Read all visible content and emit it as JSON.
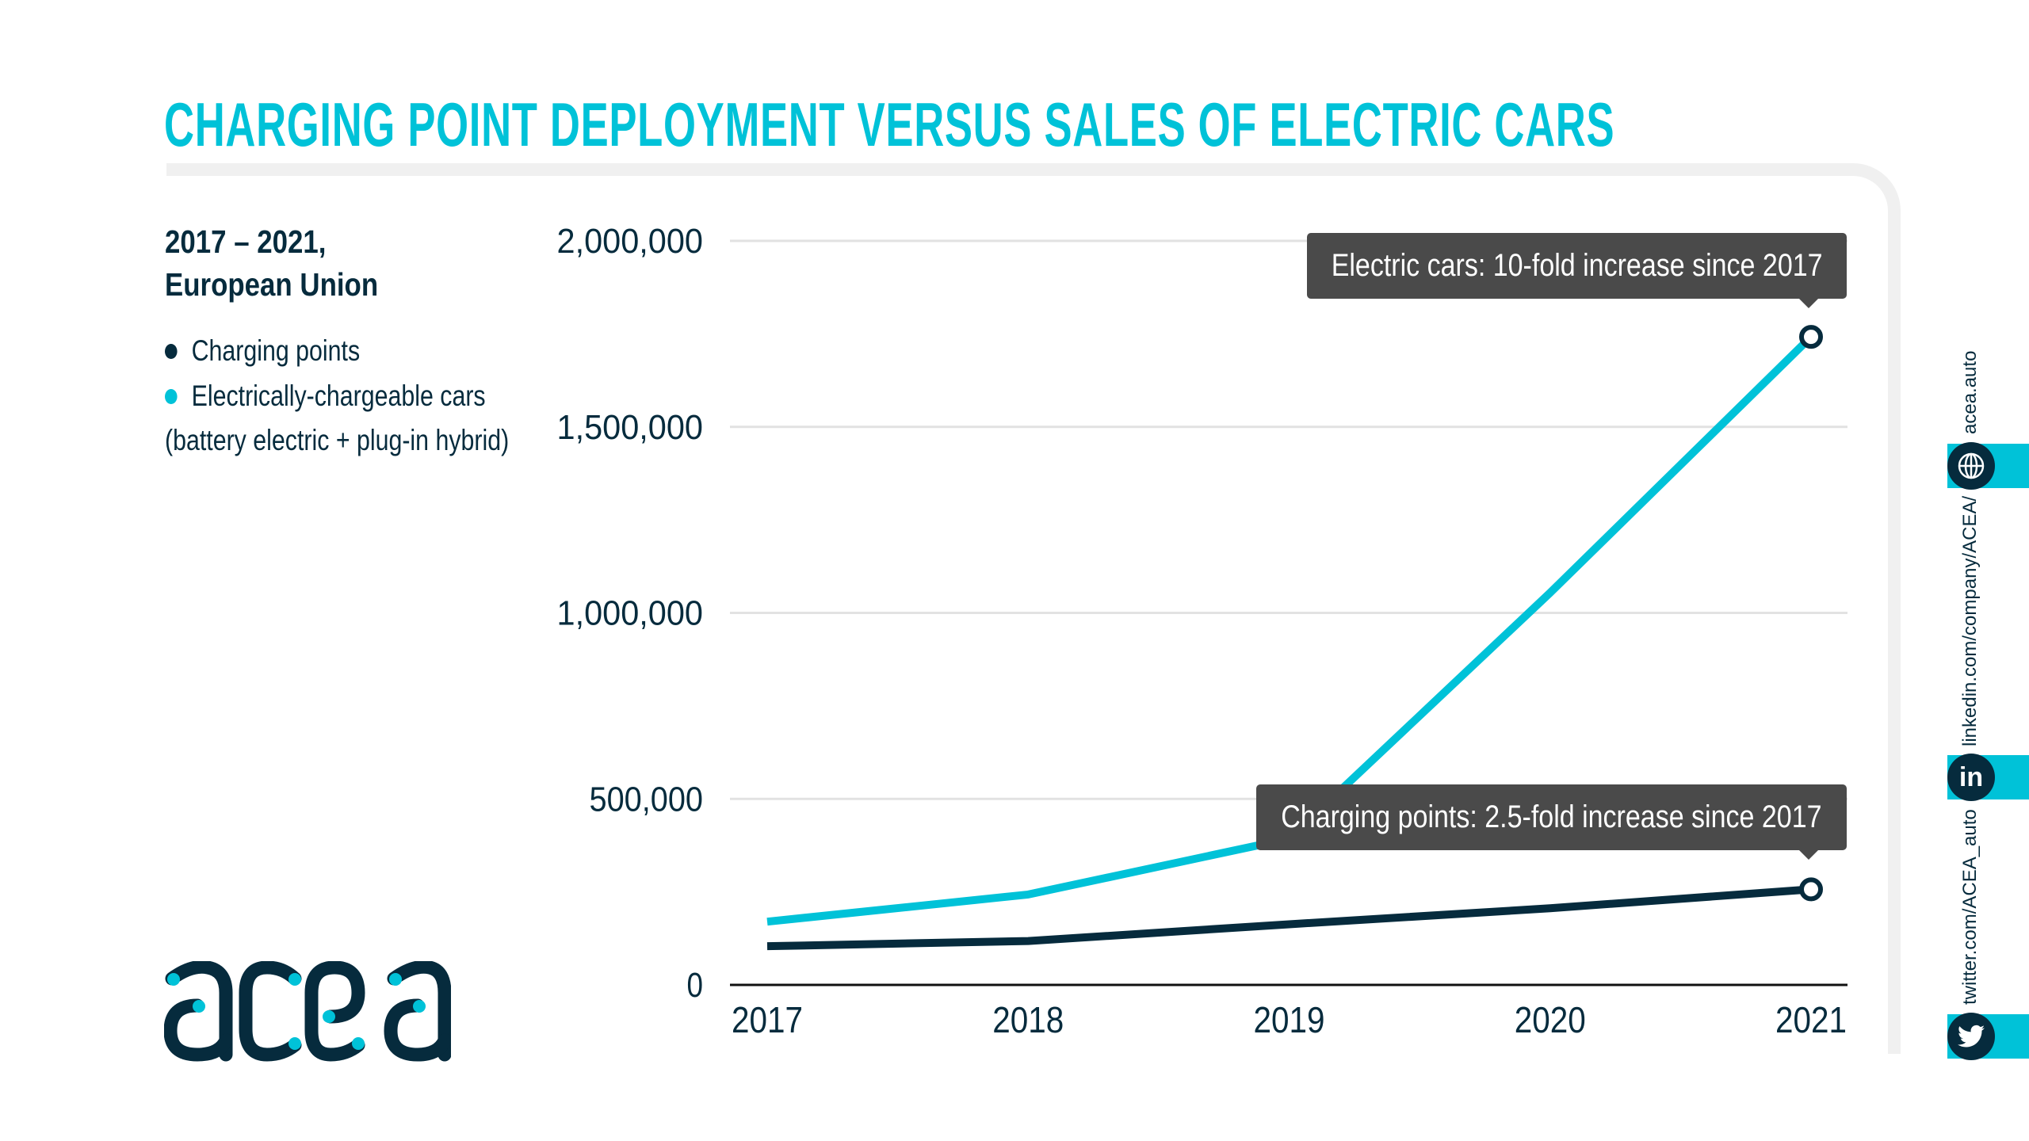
{
  "title": "CHARGING POINT DEPLOYMENT VERSUS SALES OF ELECTRIC CARS",
  "subtitle": {
    "line1": "2017 – 2021,",
    "line2": "European Union"
  },
  "legend": [
    {
      "label": "Charging points",
      "color": "#062b3d"
    },
    {
      "label": "Electrically-chargeable cars",
      "color": "#00c2d8"
    }
  ],
  "legend_note": "(battery electric + plug-in hybrid)",
  "tooltips": {
    "cars": "Electric cars: 10-fold increase since 2017",
    "charging": "Charging points: 2.5-fold increase since 2017"
  },
  "logo": "acea",
  "social": {
    "web": {
      "label": "acea.auto",
      "icon": "globe-icon"
    },
    "linkedin": {
      "label": "linkedin.com/company/ACEA/",
      "icon": "linkedin-icon"
    },
    "twitter": {
      "label": "twitter.com/ACEA_auto",
      "icon": "twitter-icon"
    }
  },
  "chart_data": {
    "type": "line",
    "title": "CHARGING POINT DEPLOYMENT VERSUS SALES OF ELECTRIC CARS",
    "xlabel": "",
    "ylabel": "",
    "categories": [
      "2017",
      "2018",
      "2019",
      "2020",
      "2021"
    ],
    "ylim": [
      0,
      2000000
    ],
    "yticks": [
      0,
      500000,
      1000000,
      1500000,
      2000000
    ],
    "ytick_labels": [
      "0",
      "500,000",
      "1,000,000",
      "1,500,000",
      "2,000,000"
    ],
    "grid": true,
    "series": [
      {
        "name": "Electrically-chargeable cars",
        "color": "#00c2d8",
        "values": [
          170000,
          243000,
          393000,
          1054000,
          1742000
        ]
      },
      {
        "name": "Charging points",
        "color": "#062b3d",
        "values": [
          104000,
          118000,
          163000,
          206000,
          257000
        ]
      }
    ]
  }
}
